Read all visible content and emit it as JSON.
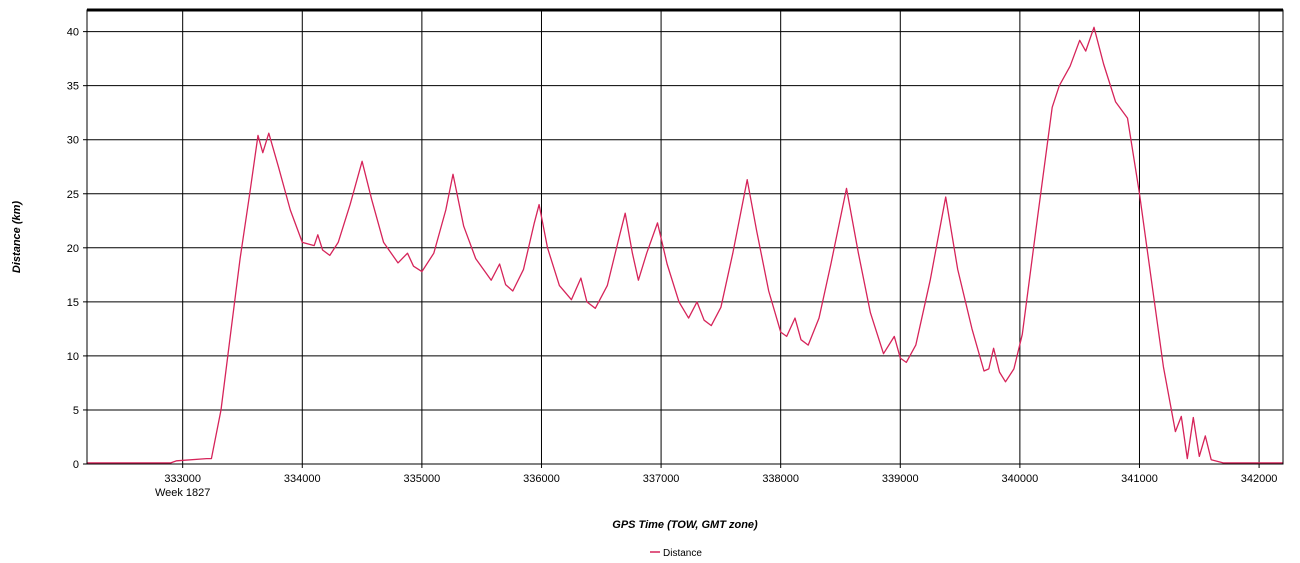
{
  "chart_data": {
    "type": "line",
    "xlabel": "GPS Time (TOW, GMT zone)",
    "ylabel": "Distance (km)",
    "xlim": [
      332200,
      342200
    ],
    "ylim": [
      0,
      42
    ],
    "x_ticks": [
      333000,
      334000,
      335000,
      336000,
      337000,
      338000,
      339000,
      340000,
      341000,
      342000
    ],
    "y_ticks": [
      0,
      5,
      10,
      15,
      20,
      25,
      30,
      35,
      40
    ],
    "x_sub_label": "Week 1827",
    "grid": true,
    "legend_position": "bottom-center",
    "series": [
      {
        "name": "Distance",
        "color": "#d6245a",
        "points": [
          [
            332200,
            0.1
          ],
          [
            332900,
            0.1
          ],
          [
            332950,
            0.3
          ],
          [
            333200,
            0.5
          ],
          [
            333240,
            0.5
          ],
          [
            333320,
            5
          ],
          [
            333400,
            12
          ],
          [
            333480,
            19
          ],
          [
            333560,
            25
          ],
          [
            333630,
            30.4
          ],
          [
            333670,
            28.8
          ],
          [
            333720,
            30.6
          ],
          [
            333800,
            27.5
          ],
          [
            333900,
            23.5
          ],
          [
            334000,
            20.5
          ],
          [
            334100,
            20.2
          ],
          [
            334130,
            21.2
          ],
          [
            334170,
            19.8
          ],
          [
            334230,
            19.3
          ],
          [
            334300,
            20.5
          ],
          [
            334400,
            24
          ],
          [
            334500,
            28
          ],
          [
            334580,
            24.5
          ],
          [
            334680,
            20.5
          ],
          [
            334800,
            18.6
          ],
          [
            334880,
            19.5
          ],
          [
            334930,
            18.3
          ],
          [
            335000,
            17.8
          ],
          [
            335100,
            19.5
          ],
          [
            335200,
            23.5
          ],
          [
            335260,
            26.8
          ],
          [
            335350,
            22
          ],
          [
            335450,
            19
          ],
          [
            335580,
            17
          ],
          [
            335650,
            18.5
          ],
          [
            335700,
            16.6
          ],
          [
            335760,
            16
          ],
          [
            335850,
            18
          ],
          [
            335940,
            22.3
          ],
          [
            335980,
            24
          ],
          [
            336050,
            20
          ],
          [
            336150,
            16.5
          ],
          [
            336250,
            15.2
          ],
          [
            336330,
            17.2
          ],
          [
            336380,
            15
          ],
          [
            336450,
            14.4
          ],
          [
            336550,
            16.5
          ],
          [
            336650,
            21
          ],
          [
            336700,
            23.2
          ],
          [
            336760,
            19.5
          ],
          [
            336810,
            17
          ],
          [
            336880,
            19.5
          ],
          [
            336970,
            22.3
          ],
          [
            337050,
            18.5
          ],
          [
            337150,
            15
          ],
          [
            337230,
            13.5
          ],
          [
            337300,
            15
          ],
          [
            337360,
            13.3
          ],
          [
            337420,
            12.8
          ],
          [
            337500,
            14.5
          ],
          [
            337600,
            19.5
          ],
          [
            337720,
            26.3
          ],
          [
            337800,
            21.5
          ],
          [
            337900,
            16
          ],
          [
            338000,
            12.2
          ],
          [
            338050,
            11.8
          ],
          [
            338120,
            13.5
          ],
          [
            338170,
            11.5
          ],
          [
            338230,
            11
          ],
          [
            338320,
            13.5
          ],
          [
            338420,
            18.5
          ],
          [
            338550,
            25.5
          ],
          [
            338650,
            19.5
          ],
          [
            338750,
            14
          ],
          [
            338860,
            10.2
          ],
          [
            338950,
            11.8
          ],
          [
            339000,
            9.8
          ],
          [
            339050,
            9.4
          ],
          [
            339130,
            11
          ],
          [
            339250,
            17
          ],
          [
            339380,
            24.7
          ],
          [
            339480,
            18
          ],
          [
            339600,
            12.5
          ],
          [
            339700,
            8.6
          ],
          [
            339740,
            8.8
          ],
          [
            339780,
            10.7
          ],
          [
            339830,
            8.5
          ],
          [
            339880,
            7.6
          ],
          [
            339950,
            8.8
          ],
          [
            340020,
            12
          ],
          [
            340150,
            23
          ],
          [
            340270,
            33
          ],
          [
            340330,
            35
          ],
          [
            340420,
            36.8
          ],
          [
            340500,
            39.2
          ],
          [
            340550,
            38.2
          ],
          [
            340620,
            40.4
          ],
          [
            340700,
            37
          ],
          [
            340800,
            33.5
          ],
          [
            340900,
            32
          ],
          [
            341000,
            25
          ],
          [
            341100,
            17
          ],
          [
            341200,
            9
          ],
          [
            341300,
            3
          ],
          [
            341350,
            4.4
          ],
          [
            341400,
            0.5
          ],
          [
            341450,
            4.3
          ],
          [
            341500,
            0.7
          ],
          [
            341550,
            2.6
          ],
          [
            341600,
            0.4
          ],
          [
            341700,
            0.1
          ],
          [
            342200,
            0.1
          ]
        ]
      }
    ]
  }
}
